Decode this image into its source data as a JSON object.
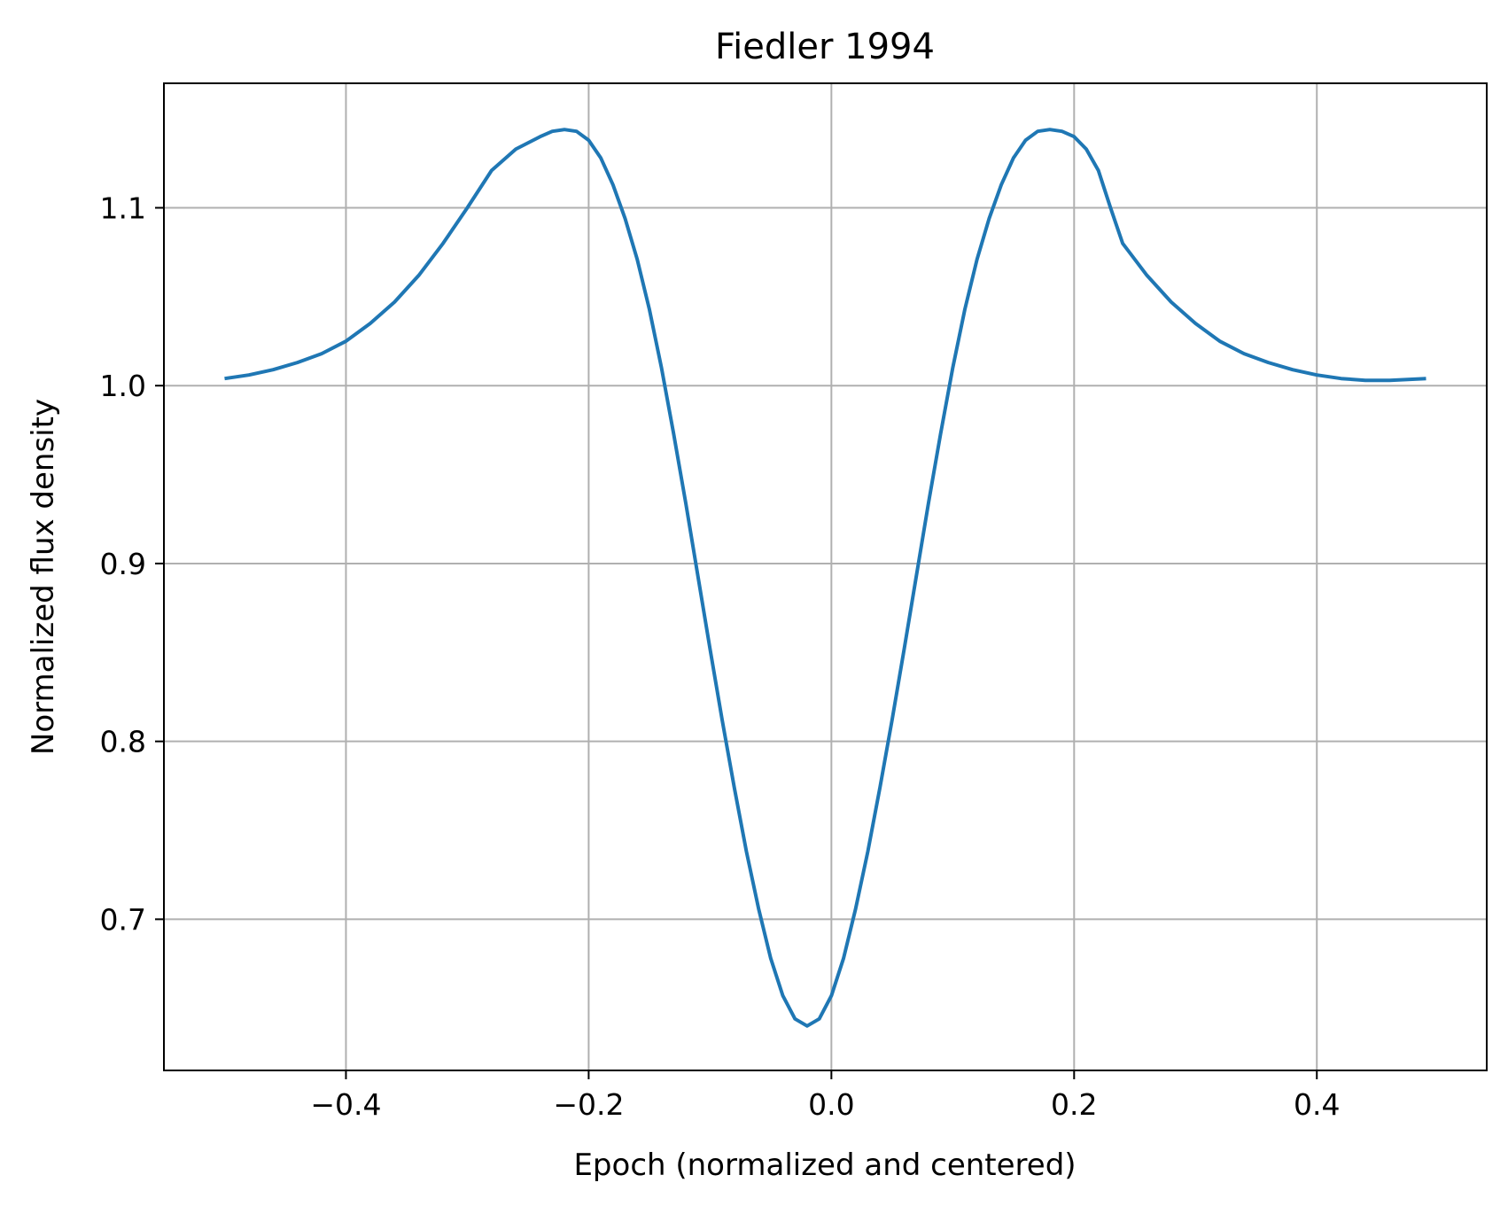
{
  "chart_data": {
    "type": "line",
    "title": "Fiedler 1994",
    "xlabel": "Epoch (normalized and centered)",
    "ylabel": "Normalized flux density",
    "xlim": [
      -0.55,
      0.54
    ],
    "ylim": [
      0.615,
      1.17
    ],
    "grid": true,
    "x_ticks": [
      -0.4,
      -0.2,
      0.0,
      0.2,
      0.4
    ],
    "x_tick_labels": [
      "−0.4",
      "−0.2",
      "0.0",
      "0.2",
      "0.4"
    ],
    "y_ticks": [
      0.7,
      0.8,
      0.9,
      1.0,
      1.1
    ],
    "y_tick_labels": [
      "0.7",
      "0.8",
      "0.9",
      "1.0",
      "1.1"
    ],
    "series": [
      {
        "color": "#1f77b4",
        "x": [
          -0.5,
          -0.48,
          -0.46,
          -0.44,
          -0.42,
          -0.4,
          -0.38,
          -0.36,
          -0.34,
          -0.32,
          -0.3,
          -0.28,
          -0.26,
          -0.24,
          -0.23,
          -0.22,
          -0.21,
          -0.2,
          -0.19,
          -0.18,
          -0.17,
          -0.16,
          -0.15,
          -0.14,
          -0.13,
          -0.12,
          -0.11,
          -0.1,
          -0.09,
          -0.08,
          -0.07,
          -0.06,
          -0.05,
          -0.04,
          -0.03,
          -0.02,
          -0.01,
          0.0,
          0.01,
          0.02,
          0.03,
          0.04,
          0.05,
          0.06,
          0.07,
          0.08,
          0.09,
          0.1,
          0.11,
          0.12,
          0.13,
          0.14,
          0.15,
          0.16,
          0.17,
          0.18,
          0.19,
          0.2,
          0.21,
          0.22,
          0.23,
          0.24,
          0.26,
          0.28,
          0.3,
          0.32,
          0.34,
          0.36,
          0.38,
          0.4,
          0.42,
          0.44,
          0.46,
          0.49
        ],
        "y": [
          1.004,
          1.006,
          1.009,
          1.013,
          1.018,
          1.025,
          1.035,
          1.047,
          1.062,
          1.08,
          1.1,
          1.121,
          1.133,
          1.14,
          1.143,
          1.144,
          1.143,
          1.138,
          1.128,
          1.113,
          1.094,
          1.071,
          1.043,
          1.01,
          0.973,
          0.934,
          0.893,
          0.852,
          0.812,
          0.774,
          0.738,
          0.706,
          0.678,
          0.657,
          0.644,
          0.64,
          0.644,
          0.657,
          0.678,
          0.706,
          0.738,
          0.774,
          0.812,
          0.852,
          0.893,
          0.934,
          0.973,
          1.01,
          1.043,
          1.071,
          1.094,
          1.113,
          1.128,
          1.138,
          1.143,
          1.144,
          1.143,
          1.14,
          1.133,
          1.121,
          1.1,
          1.08,
          1.062,
          1.047,
          1.035,
          1.025,
          1.018,
          1.013,
          1.009,
          1.006,
          1.004,
          1.003,
          1.003,
          1.004
        ]
      }
    ]
  }
}
